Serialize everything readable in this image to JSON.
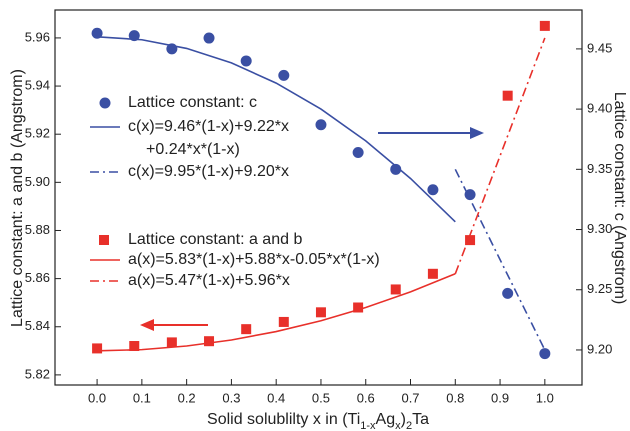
{
  "chart_data": {
    "type": "scatter",
    "x_label_parts": [
      "Solid solublilty x in (Ti",
      "1-x",
      "Ag",
      "x",
      ")",
      "2",
      "Ta"
    ],
    "y_label": "Lattice constant: a and b (Angstrom)",
    "y2_label": "Lattice constant: c (Angstrom)",
    "xlim": [
      -0.094,
      1.083
    ],
    "ylim": [
      5.8158,
      5.9716
    ],
    "y2lim": [
      9.1709,
      9.4823
    ],
    "xticks": [
      {
        "value": 0,
        "label": "0.0"
      },
      0.1,
      0.2,
      0.3,
      0.4,
      0.5,
      0.6,
      0.7,
      0.8,
      0.9,
      {
        "value": 1,
        "label": "1.0"
      }
    ],
    "yticks": [
      5.82,
      5.84,
      5.86,
      5.88,
      {
        "value": 5.9,
        "label": "5.90"
      },
      5.92,
      5.94,
      5.96
    ],
    "y2ticks": [
      {
        "value": 9.2,
        "label": "9.20"
      },
      9.25,
      {
        "value": 9.3,
        "label": "9.30"
      },
      9.35,
      {
        "value": 9.4,
        "label": "9.40"
      },
      9.45
    ],
    "series": [
      {
        "name": [
          "Lattice constant: c"
        ],
        "kind": "points",
        "marker": "circle",
        "axis": "y2",
        "color": "#3a4fa3",
        "x": [
          0,
          0.083,
          0.167,
          0.25,
          0.333,
          0.417,
          0.5,
          0.583,
          0.667,
          0.75,
          0.833,
          0.917,
          1.0
        ],
        "values": [
          9.463,
          9.461,
          9.45,
          9.459,
          9.44,
          9.428,
          9.387,
          9.364,
          9.35,
          9.333,
          9.329,
          9.247,
          9.197
        ]
      },
      {
        "name": [
          "c(x)=9.46*(1-x)+9.22*x",
          "+0.24*x*(1-x)"
        ],
        "kind": "line",
        "dash": "solid",
        "axis": "y2",
        "color": "#3a4fa3",
        "x": [
          0,
          0.1,
          0.2,
          0.3,
          0.4,
          0.5,
          0.6,
          0.7,
          0.8
        ],
        "values": [
          9.46,
          9.4576,
          9.4504,
          9.4384,
          9.4216,
          9.4,
          9.3736,
          9.3424,
          9.3064
        ]
      },
      {
        "name": [
          "c(x)=9.95*(1-x)+9.20*x"
        ],
        "kind": "line",
        "dash": "dashdot",
        "axis": "y2",
        "color": "#3a4fa3",
        "x": [
          0.8,
          1.0
        ],
        "values": [
          9.35,
          9.2
        ]
      },
      {
        "name": [
          "Lattice constant: a and b"
        ],
        "kind": "points",
        "marker": "square",
        "axis": "y",
        "color": "#e8302a",
        "x": [
          0,
          0.083,
          0.167,
          0.25,
          0.333,
          0.417,
          0.5,
          0.583,
          0.667,
          0.75,
          0.833,
          0.917,
          1.0
        ],
        "values": [
          5.831,
          5.832,
          5.8335,
          5.834,
          5.839,
          5.842,
          5.846,
          5.848,
          5.8555,
          5.862,
          5.876,
          5.936,
          5.965
        ]
      },
      {
        "name": [
          "a(x)=5.83*(1-x)+5.88*x-0.05*x*(1-x)"
        ],
        "kind": "line",
        "dash": "solid",
        "axis": "y",
        "color": "#e8302a",
        "x": [
          0,
          0.1,
          0.2,
          0.3,
          0.4,
          0.5,
          0.6,
          0.7,
          0.8
        ],
        "values": [
          5.83,
          5.8305,
          5.832,
          5.8345,
          5.838,
          5.8425,
          5.848,
          5.8545,
          5.862
        ]
      },
      {
        "name": [
          "a(x)=5.47*(1-x)+5.96*x"
        ],
        "kind": "line",
        "dash": "dashdot",
        "axis": "y",
        "color": "#e8302a",
        "x": [
          0.8,
          1.0
        ],
        "values": [
          5.862,
          5.96
        ]
      }
    ]
  }
}
